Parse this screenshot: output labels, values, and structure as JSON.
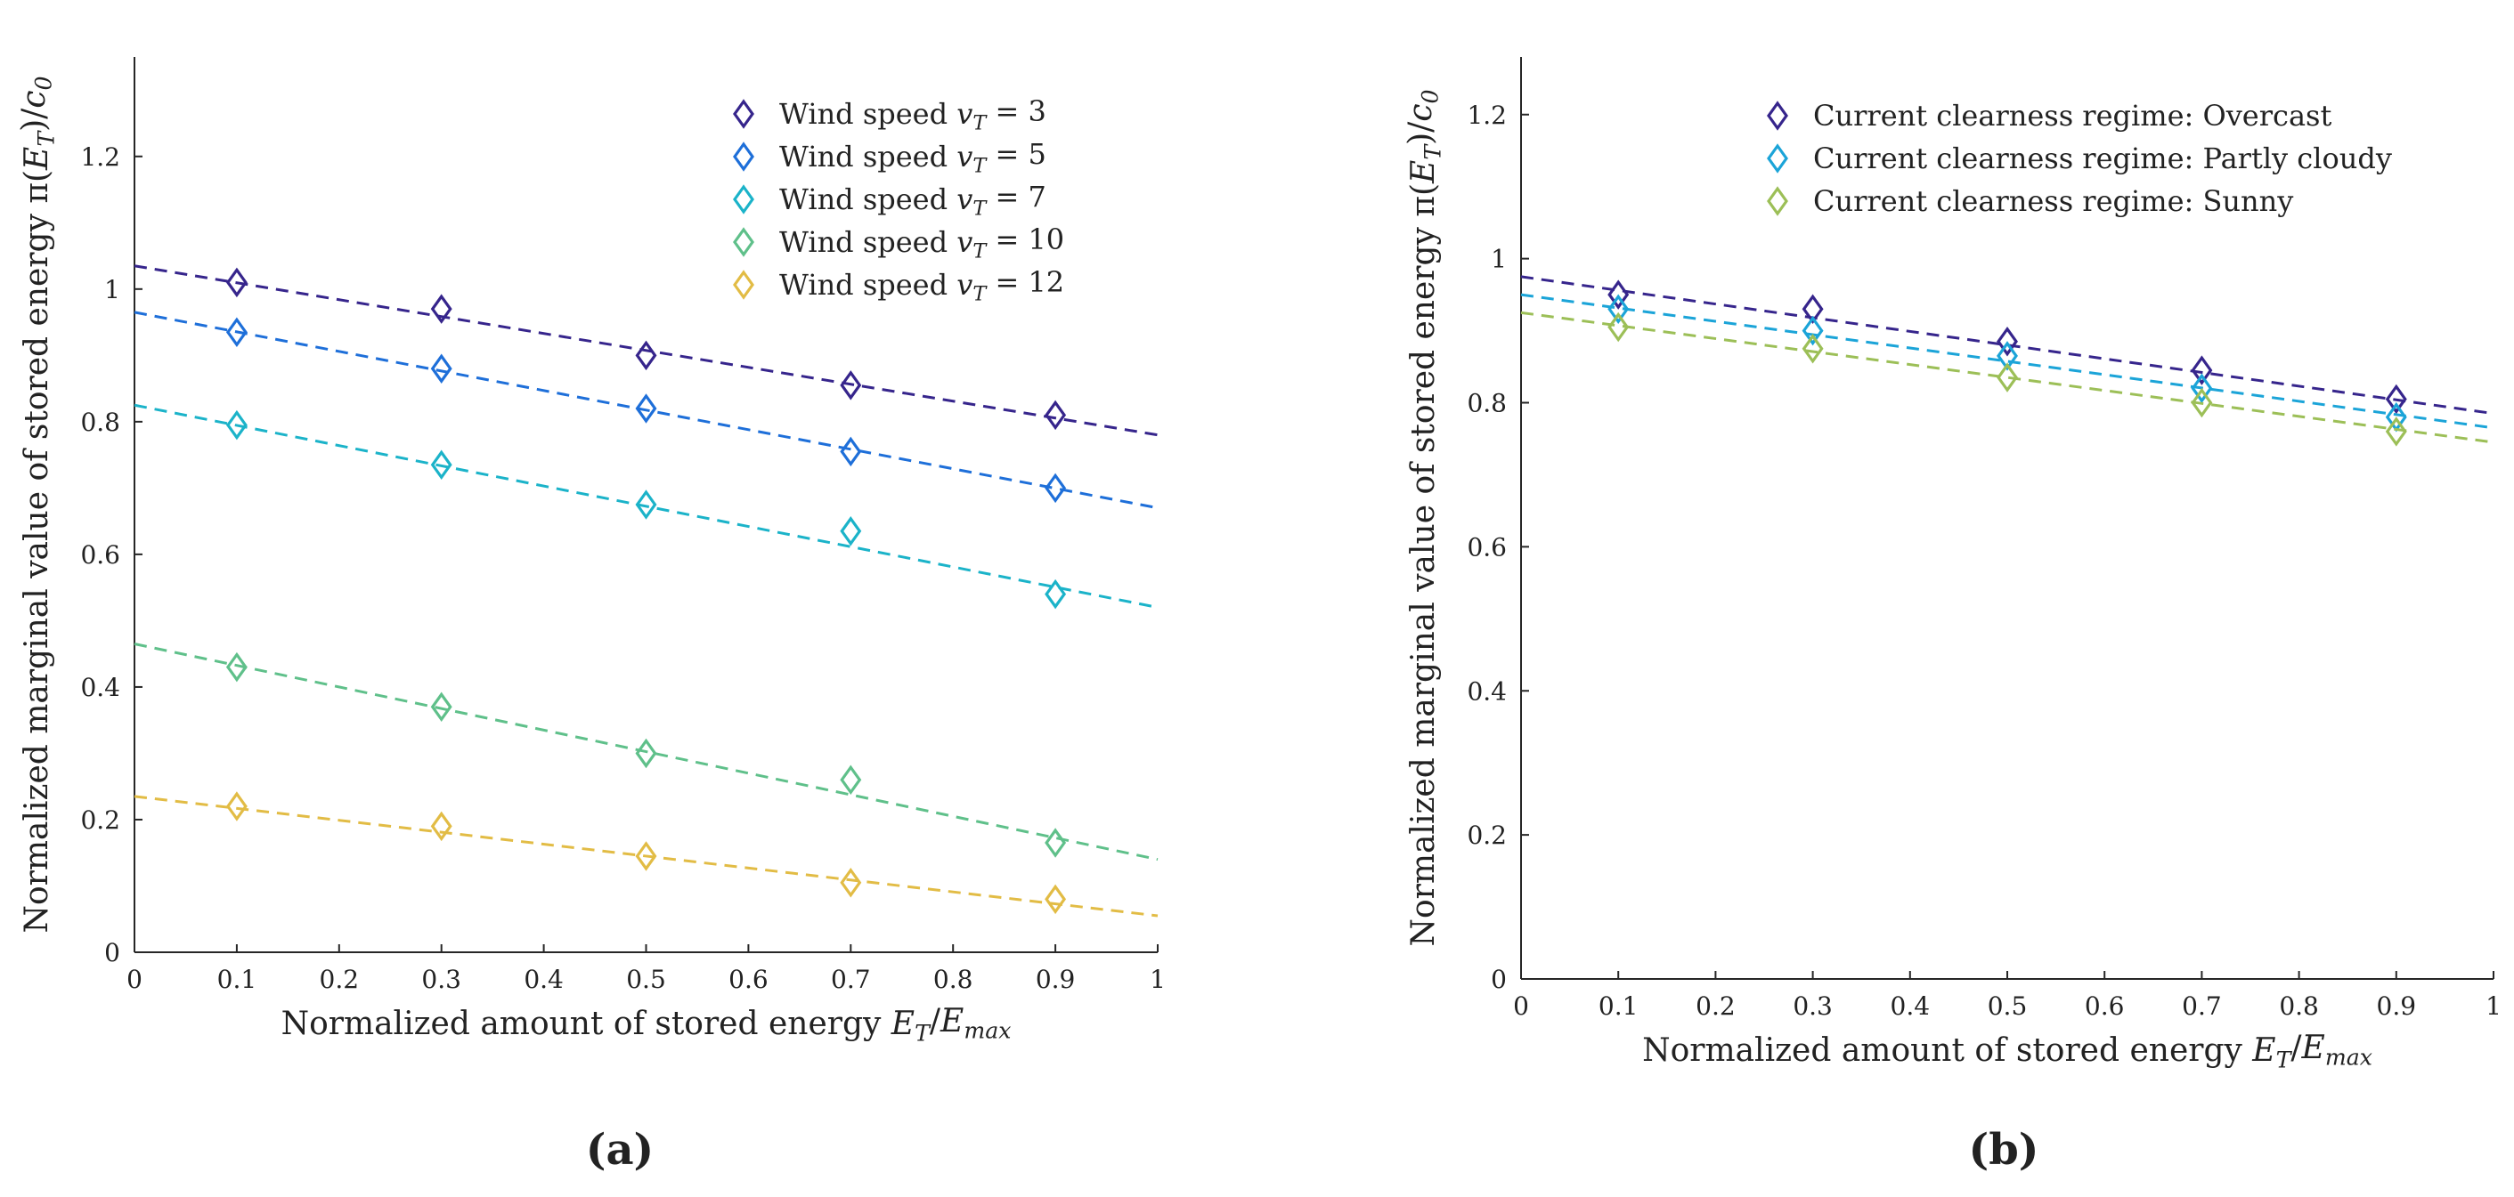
{
  "chart_data": [
    {
      "type": "scatter",
      "panel_label": "(a)",
      "xlabel": "Normalized amount of stored energy E_T/E_max",
      "ylabel": "Normalized marginal value of stored energy π(E_T)/c_0",
      "xlim": [
        0,
        1
      ],
      "ylim": [
        0,
        1.35
      ],
      "xticks": [
        "0",
        "0.1",
        "0.2",
        "0.3",
        "0.4",
        "0.5",
        "0.6",
        "0.7",
        "0.8",
        "0.9",
        "1"
      ],
      "yticks": [
        "0",
        "0.2",
        "0.4",
        "0.6",
        "0.8",
        "1",
        "1.2"
      ],
      "legend_location": "top-right",
      "series": [
        {
          "name": "Wind speed v_T = 3",
          "color": "#36258C",
          "x": [
            0.1,
            0.3,
            0.5,
            0.7,
            0.9
          ],
          "y": [
            1.01,
            0.97,
            0.9,
            0.855,
            0.81
          ],
          "fit": [
            1.035,
            0.78
          ]
        },
        {
          "name": "Wind speed v_T = 5",
          "color": "#1E6FD9",
          "x": [
            0.1,
            0.3,
            0.5,
            0.7,
            0.9
          ],
          "y": [
            0.935,
            0.88,
            0.82,
            0.755,
            0.7
          ],
          "fit": [
            0.965,
            0.67
          ]
        },
        {
          "name": "Wind speed v_T = 7",
          "color": "#1BB3C9",
          "x": [
            0.1,
            0.3,
            0.5,
            0.7,
            0.9
          ],
          "y": [
            0.795,
            0.735,
            0.675,
            0.635,
            0.54
          ],
          "fit": [
            0.825,
            0.52
          ]
        },
        {
          "name": "Wind speed v_T = 10",
          "color": "#5FC08A",
          "x": [
            0.1,
            0.3,
            0.5,
            0.7,
            0.9
          ],
          "y": [
            0.43,
            0.37,
            0.3,
            0.26,
            0.165
          ],
          "fit": [
            0.465,
            0.14
          ]
        },
        {
          "name": "Wind speed v_T = 12",
          "color": "#E2BC45",
          "x": [
            0.1,
            0.3,
            0.5,
            0.7,
            0.9
          ],
          "y": [
            0.22,
            0.19,
            0.145,
            0.105,
            0.08
          ],
          "fit": [
            0.235,
            0.055
          ]
        }
      ]
    },
    {
      "type": "scatter",
      "panel_label": "(b)",
      "xlabel": "Normalized amount of stored energy E_T/E_max",
      "ylabel": "Normalized marginal value of stored energy π(E_T)/c_0",
      "xlim": [
        0,
        1
      ],
      "ylim": [
        0,
        1.28
      ],
      "xticks": [
        "0",
        "0.1",
        "0.2",
        "0.3",
        "0.4",
        "0.5",
        "0.6",
        "0.7",
        "0.8",
        "0.9",
        "1"
      ],
      "yticks": [
        "0",
        "0.2",
        "0.4",
        "0.6",
        "0.8",
        "1",
        "1.2"
      ],
      "legend_location": "top-right",
      "series": [
        {
          "name": "Current clearness regime: Overcast",
          "color": "#36258C",
          "x": [
            0.1,
            0.3,
            0.5,
            0.7,
            0.9
          ],
          "y": [
            0.95,
            0.93,
            0.885,
            0.845,
            0.805
          ],
          "fit": [
            0.975,
            0.785
          ]
        },
        {
          "name": "Current clearness regime: Partly cloudy",
          "color": "#1BA4D8",
          "x": [
            0.1,
            0.3,
            0.5,
            0.7,
            0.9
          ],
          "y": [
            0.93,
            0.9,
            0.865,
            0.82,
            0.78
          ],
          "fit": [
            0.95,
            0.765
          ]
        },
        {
          "name": "Current clearness regime: Sunny",
          "color": "#9CBF57",
          "x": [
            0.1,
            0.3,
            0.5,
            0.7,
            0.9
          ],
          "y": [
            0.905,
            0.875,
            0.835,
            0.8,
            0.76
          ],
          "fit": [
            0.925,
            0.745
          ]
        }
      ]
    }
  ]
}
